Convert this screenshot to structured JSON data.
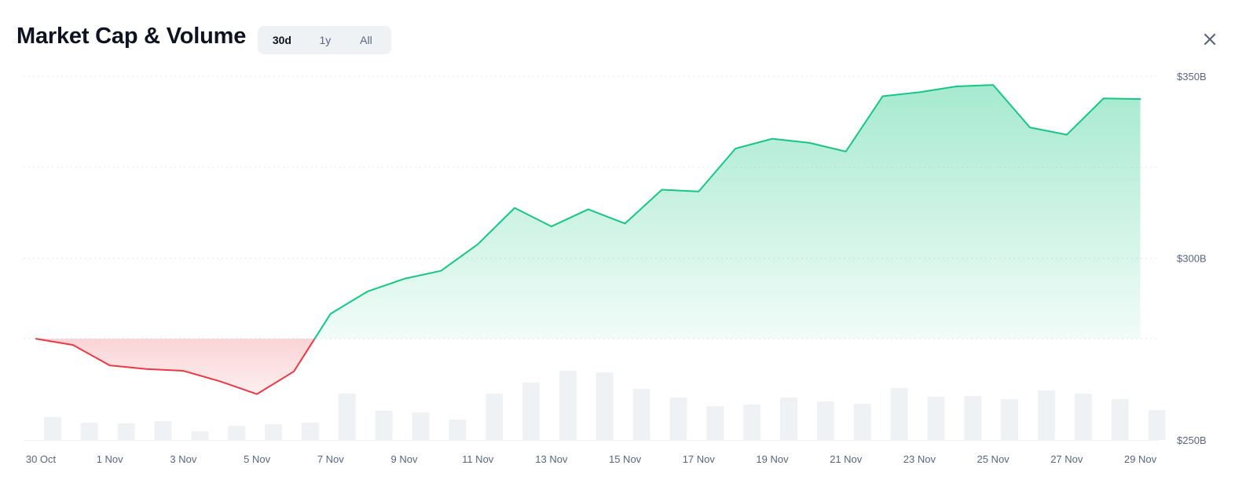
{
  "header": {
    "title": "Market Cap & Volume",
    "ranges": [
      {
        "label": "30d",
        "active": true
      },
      {
        "label": "1y",
        "active": false
      },
      {
        "label": "All",
        "active": false
      }
    ],
    "close_icon": "close-icon"
  },
  "colors": {
    "up": "#16c784",
    "down": "#ea3943",
    "volume": "#eff2f5",
    "grid": "#e6e9ef"
  },
  "chart_data": {
    "type": "area",
    "y_ticks": [
      "$350B",
      "$300B",
      "$250B"
    ],
    "ylim": [
      250,
      350
    ],
    "x_tick_labels": [
      "30 Oct",
      "1 Nov",
      "3 Nov",
      "5 Nov",
      "7 Nov",
      "9 Nov",
      "11 Nov",
      "13 Nov",
      "15 Nov",
      "17 Nov",
      "19 Nov",
      "21 Nov",
      "23 Nov",
      "25 Nov",
      "27 Nov",
      "29 Nov"
    ],
    "baseline": 277.8,
    "market_cap": [
      {
        "x": "30 Oct",
        "y": 277.8
      },
      {
        "x": "31 Oct",
        "y": 276.1
      },
      {
        "x": "1 Nov",
        "y": 270.5
      },
      {
        "x": "2 Nov",
        "y": 269.5
      },
      {
        "x": "3 Nov",
        "y": 269.0
      },
      {
        "x": "4 Nov",
        "y": 266.1
      },
      {
        "x": "5 Nov",
        "y": 262.6
      },
      {
        "x": "6 Nov",
        "y": 268.8
      },
      {
        "x": "7 Nov",
        "y": 284.7
      },
      {
        "x": "8 Nov",
        "y": 290.8
      },
      {
        "x": "9 Nov",
        "y": 294.3
      },
      {
        "x": "10 Nov",
        "y": 296.5
      },
      {
        "x": "11 Nov",
        "y": 303.8
      },
      {
        "x": "12 Nov",
        "y": 313.8
      },
      {
        "x": "13 Nov",
        "y": 308.7
      },
      {
        "x": "14 Nov",
        "y": 313.4
      },
      {
        "x": "15 Nov",
        "y": 309.5
      },
      {
        "x": "16 Nov",
        "y": 318.8
      },
      {
        "x": "17 Nov",
        "y": 318.3
      },
      {
        "x": "18 Nov",
        "y": 330.1
      },
      {
        "x": "19 Nov",
        "y": 332.8
      },
      {
        "x": "20 Nov",
        "y": 331.7
      },
      {
        "x": "21 Nov",
        "y": 329.3
      },
      {
        "x": "22 Nov",
        "y": 344.5
      },
      {
        "x": "23 Nov",
        "y": 345.6
      },
      {
        "x": "24 Nov",
        "y": 347.2
      },
      {
        "x": "25 Nov",
        "y": 347.6
      },
      {
        "x": "26 Nov",
        "y": 335.9
      },
      {
        "x": "27 Nov",
        "y": 333.9
      },
      {
        "x": "28 Nov",
        "y": 343.9
      },
      {
        "x": "29 Nov",
        "y": 343.7
      }
    ],
    "volume": [
      {
        "x": "30 Oct",
        "v": 29
      },
      {
        "x": "31 Oct",
        "v": 22
      },
      {
        "x": "1 Nov",
        "v": 21
      },
      {
        "x": "2 Nov",
        "v": 24
      },
      {
        "x": "3 Nov",
        "v": 11
      },
      {
        "x": "4 Nov",
        "v": 18
      },
      {
        "x": "5 Nov",
        "v": 20
      },
      {
        "x": "6 Nov",
        "v": 22
      },
      {
        "x": "7 Nov",
        "v": 59
      },
      {
        "x": "8 Nov",
        "v": 37
      },
      {
        "x": "9 Nov",
        "v": 35
      },
      {
        "x": "10 Nov",
        "v": 26
      },
      {
        "x": "11 Nov",
        "v": 59
      },
      {
        "x": "12 Nov",
        "v": 73
      },
      {
        "x": "13 Nov",
        "v": 88
      },
      {
        "x": "14 Nov",
        "v": 86
      },
      {
        "x": "15 Nov",
        "v": 65
      },
      {
        "x": "16 Nov",
        "v": 54
      },
      {
        "x": "17 Nov",
        "v": 43
      },
      {
        "x": "18 Nov",
        "v": 45
      },
      {
        "x": "19 Nov",
        "v": 54
      },
      {
        "x": "20 Nov",
        "v": 49
      },
      {
        "x": "21 Nov",
        "v": 46
      },
      {
        "x": "22 Nov",
        "v": 66
      },
      {
        "x": "23 Nov",
        "v": 55
      },
      {
        "x": "24 Nov",
        "v": 56
      },
      {
        "x": "25 Nov",
        "v": 52
      },
      {
        "x": "26 Nov",
        "v": 63
      },
      {
        "x": "27 Nov",
        "v": 59
      },
      {
        "x": "28 Nov",
        "v": 52
      },
      {
        "x": "29 Nov",
        "v": 38
      }
    ]
  }
}
